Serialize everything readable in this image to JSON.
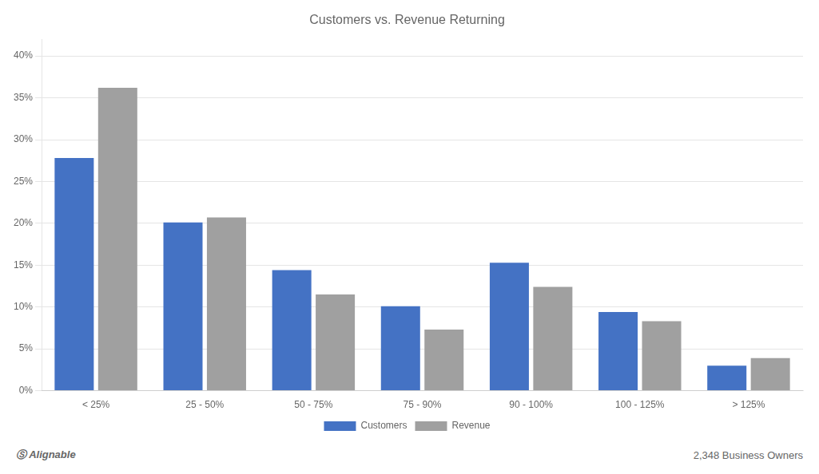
{
  "chart_data": {
    "type": "bar",
    "title": "Customers vs. Revenue Returning",
    "categories": [
      "< 25%",
      "25 - 50%",
      "50 - 75%",
      "75 - 90%",
      "90 - 100%",
      "100 - 125%",
      "> 125%"
    ],
    "series": [
      {
        "name": "Customers",
        "color": "#4472C4",
        "values": [
          0.278,
          0.201,
          0.144,
          0.101,
          0.153,
          0.094,
          0.03
        ]
      },
      {
        "name": "Revenue",
        "color": "#A0A0A0",
        "values": [
          0.362,
          0.207,
          0.115,
          0.073,
          0.124,
          0.083,
          0.039
        ]
      }
    ],
    "ylim": [
      0,
      0.42
    ],
    "yticks": [
      {
        "value": 0,
        "label": "0%"
      },
      {
        "value": 0.05,
        "label": "5%"
      },
      {
        "value": 0.1,
        "label": "10%"
      },
      {
        "value": 0.15,
        "label": "15%"
      },
      {
        "value": 0.2,
        "label": "20%"
      },
      {
        "value": 0.25,
        "label": "25%"
      },
      {
        "value": 0.3,
        "label": "30%"
      },
      {
        "value": 0.35,
        "label": "35%"
      },
      {
        "value": 0.4,
        "label": "40%"
      }
    ],
    "grid": true,
    "legend": "bottom",
    "annotations": [
      "Ⓢ",
      "Alignable",
      "2,348 Business Owners"
    ]
  }
}
